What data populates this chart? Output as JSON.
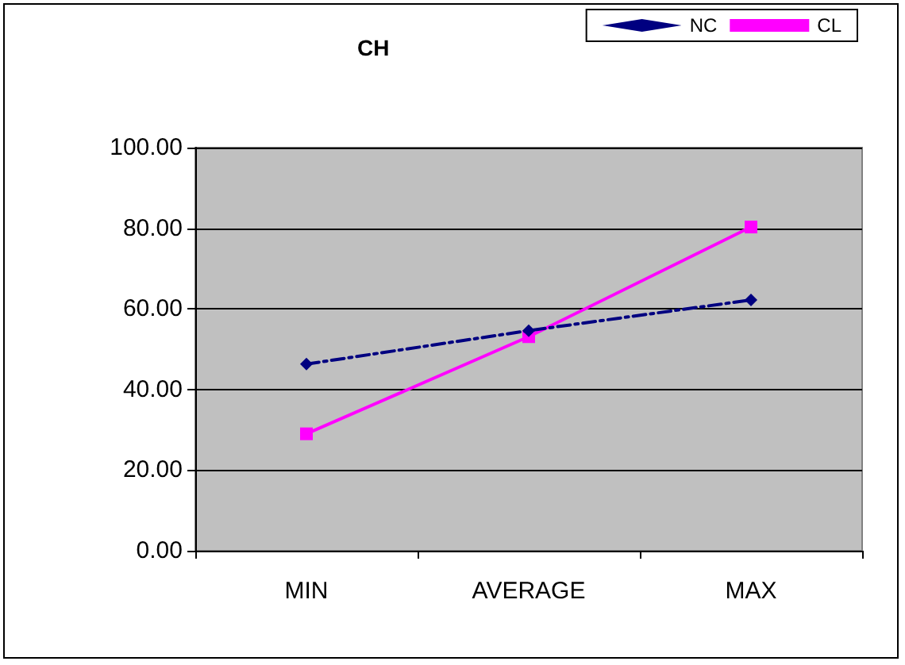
{
  "chart_data": {
    "type": "line",
    "title": "CH",
    "categories": [
      "MIN",
      "AVERAGE",
      "MAX"
    ],
    "series": [
      {
        "name": "NC",
        "color": "#000080",
        "values": [
          46.3,
          54.6,
          62.2
        ],
        "marker": "diamond",
        "line_style": "dashed"
      },
      {
        "name": "CL",
        "color": "#ff00ff",
        "values": [
          29,
          53.1,
          80.3
        ],
        "marker": "square",
        "line_style": "solid"
      }
    ],
    "ylim": [
      0,
      100
    ],
    "yticks": [
      {
        "value": 0,
        "label": "0.00"
      },
      {
        "value": 20,
        "label": "20.00"
      },
      {
        "value": 40,
        "label": "40.00"
      },
      {
        "value": 60,
        "label": "60.00"
      },
      {
        "value": 80,
        "label": "80.00"
      },
      {
        "value": 100,
        "label": "100.00"
      }
    ],
    "grid": "y",
    "legend": "top right"
  }
}
